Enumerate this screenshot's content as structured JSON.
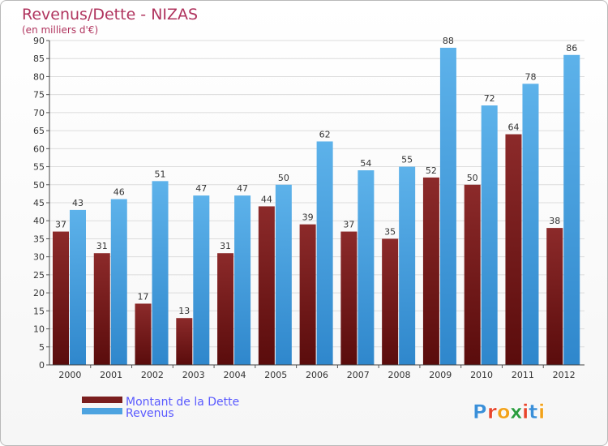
{
  "chart_data": {
    "type": "bar",
    "title": "Revenus/Dette - NIZAS",
    "subtitle": "(en milliers d'€)",
    "categories": [
      "2000",
      "2001",
      "2002",
      "2003",
      "2004",
      "2005",
      "2006",
      "2007",
      "2008",
      "2009",
      "2010",
      "2011",
      "2012"
    ],
    "series": [
      {
        "name": "Montant de la Dette",
        "color": "#7a1e1e",
        "values": [
          37,
          31,
          17,
          13,
          31,
          44,
          39,
          37,
          35,
          52,
          50,
          64,
          38
        ]
      },
      {
        "name": "Revenus",
        "color": "#4da3e0",
        "values": [
          43,
          46,
          51,
          47,
          47,
          50,
          62,
          54,
          55,
          88,
          72,
          78,
          86
        ]
      }
    ],
    "ylim": [
      0,
      90
    ],
    "ytick_step": 5,
    "grid": "horizontal",
    "legend_position": "bottom-left",
    "data_labels": true
  },
  "brand": {
    "letters": [
      "P",
      "r",
      "o",
      "x",
      "i",
      "t",
      "i"
    ],
    "colors": [
      "#3a8fd8",
      "#e8452c",
      "#f2a21a",
      "#2a9c3e",
      "#e8452c",
      "#3a8fd8",
      "#f2a21a"
    ]
  }
}
